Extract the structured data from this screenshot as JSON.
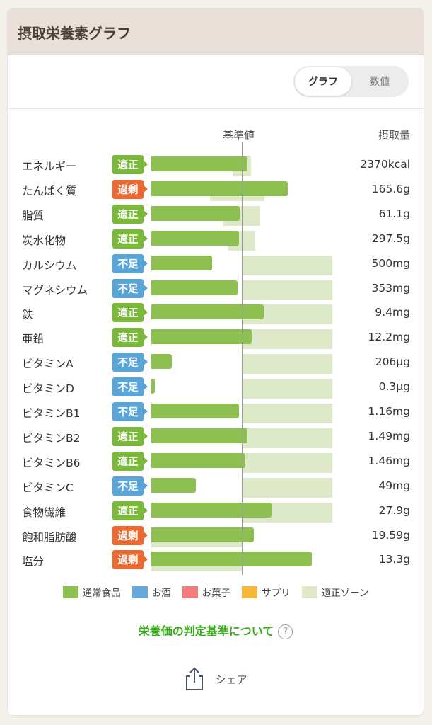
{
  "header": {
    "title": "摂取栄養素グラフ"
  },
  "toggle": {
    "graph": "グラフ",
    "values": "数値"
  },
  "columns": {
    "reference": "基準値",
    "intake": "摂取量"
  },
  "colors": {
    "normal_food": "#8dc050",
    "alcohol": "#64a8dc",
    "snack": "#f27b7b",
    "supplement": "#f5b83c",
    "zone": "#dde9c8",
    "badge_ok": "#7ab83a",
    "badge_over": "#ec6a32",
    "badge_under": "#5aa5d8"
  },
  "chart_data": {
    "type": "bar",
    "reference_line": 1.0,
    "rows": [
      {
        "name": "エネルギー",
        "status": "適正",
        "amount": "2370kcal",
        "ratio": 1.06,
        "zone": [
          0.9,
          1.1
        ]
      },
      {
        "name": "たんぱく質",
        "status": "過剰",
        "amount": "165.6g",
        "ratio": 1.51,
        "zone": [
          0.65,
          1.25
        ]
      },
      {
        "name": "脂質",
        "status": "適正",
        "amount": "61.1g",
        "ratio": 0.98,
        "zone": [
          0.8,
          1.2
        ]
      },
      {
        "name": "炭水化物",
        "status": "適正",
        "amount": "297.5g",
        "ratio": 0.97,
        "zone": [
          0.85,
          1.15
        ]
      },
      {
        "name": "カルシウム",
        "status": "不足",
        "amount": "500mg",
        "ratio": 0.67,
        "zone": [
          1.0,
          2.0
        ]
      },
      {
        "name": "マグネシウム",
        "status": "不足",
        "amount": "353mg",
        "ratio": 0.95,
        "zone": [
          1.0,
          2.0
        ]
      },
      {
        "name": "鉄",
        "status": "適正",
        "amount": "9.4mg",
        "ratio": 1.24,
        "zone": [
          1.0,
          2.0
        ]
      },
      {
        "name": "亜鉛",
        "status": "適正",
        "amount": "12.2mg",
        "ratio": 1.11,
        "zone": [
          1.0,
          2.0
        ]
      },
      {
        "name": "ビタミンA",
        "status": "不足",
        "amount": "206μg",
        "ratio": 0.23,
        "zone": [
          1.0,
          2.0
        ]
      },
      {
        "name": "ビタミンD",
        "status": "不足",
        "amount": "0.3μg",
        "ratio": 0.04,
        "zone": [
          1.0,
          2.0
        ]
      },
      {
        "name": "ビタミンB1",
        "status": "不足",
        "amount": "1.16mg",
        "ratio": 0.97,
        "zone": [
          1.0,
          2.0
        ]
      },
      {
        "name": "ビタミンB2",
        "status": "適正",
        "amount": "1.49mg",
        "ratio": 1.06,
        "zone": [
          1.0,
          2.0
        ]
      },
      {
        "name": "ビタミンB6",
        "status": "適正",
        "amount": "1.46mg",
        "ratio": 1.04,
        "zone": [
          1.0,
          2.0
        ]
      },
      {
        "name": "ビタミンC",
        "status": "不足",
        "amount": "49mg",
        "ratio": 0.49,
        "zone": [
          1.0,
          2.0
        ]
      },
      {
        "name": "食物繊維",
        "status": "適正",
        "amount": "27.9g",
        "ratio": 1.33,
        "zone": [
          1.0,
          2.0
        ]
      },
      {
        "name": "飽和脂肪酸",
        "status": "過剰",
        "amount": "19.59g",
        "ratio": 1.13,
        "zone": [
          0.0,
          1.0
        ]
      },
      {
        "name": "塩分",
        "status": "過剰",
        "amount": "13.3g",
        "ratio": 1.77,
        "zone": [
          0.0,
          1.0
        ]
      }
    ]
  },
  "legend": [
    {
      "label": "通常食品",
      "color": "#8dc050"
    },
    {
      "label": "お酒",
      "color": "#64a8dc"
    },
    {
      "label": "お菓子",
      "color": "#f27b7b"
    },
    {
      "label": "サプリ",
      "color": "#f5b83c"
    },
    {
      "label": "適正ゾーン",
      "color": "#dde9c8"
    }
  ],
  "criteria_link": {
    "label": "栄養価の判定基準について",
    "help_icon": "?"
  },
  "share": {
    "label": "シェア"
  }
}
